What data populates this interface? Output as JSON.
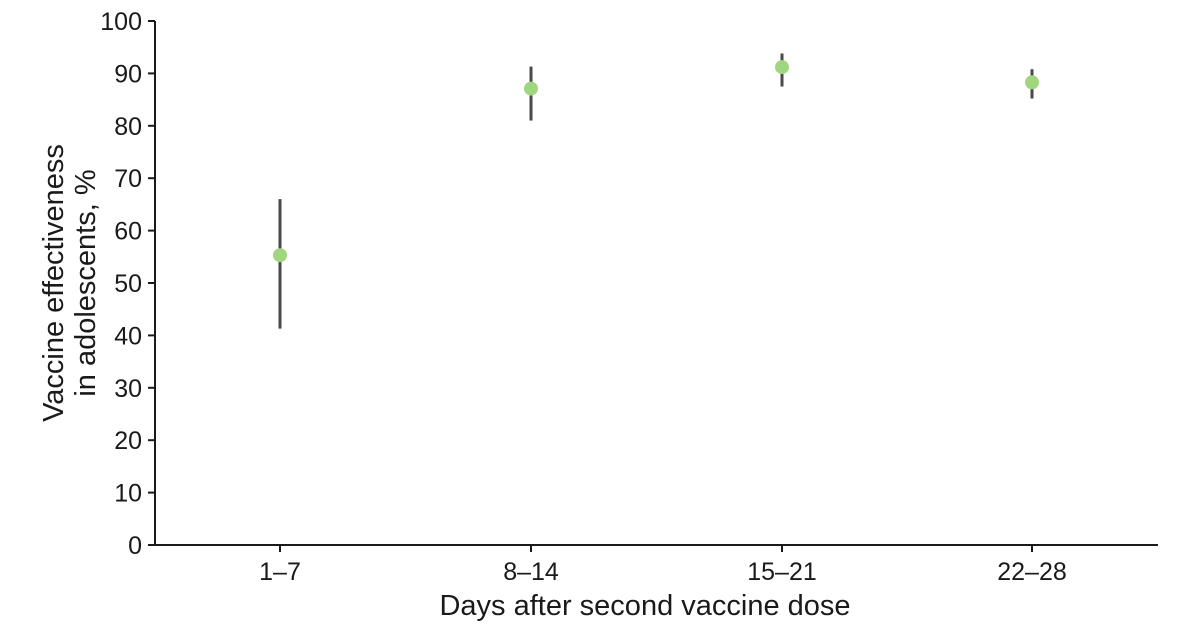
{
  "chart_data": {
    "type": "scatter",
    "title": "",
    "xlabel": "Days after second vaccine dose",
    "ylabel_lines": [
      "Vaccine effectiveness",
      "in adolescents, %"
    ],
    "categories": [
      "1–7",
      "8–14",
      "15–21",
      "22–28"
    ],
    "series": [
      {
        "values": [
          55.3,
          87.1,
          91.2,
          88.3
        ],
        "ci_lower": [
          41.3,
          81.0,
          87.5,
          85.2
        ],
        "ci_upper": [
          66.0,
          91.3,
          93.8,
          90.8
        ],
        "color": "#9fd67e"
      }
    ],
    "ylim": [
      0,
      100
    ],
    "yticks": [
      "0",
      "10",
      "20",
      "30",
      "40",
      "50",
      "60",
      "70",
      "80",
      "90",
      "100"
    ],
    "grid": false,
    "legend": "none"
  }
}
